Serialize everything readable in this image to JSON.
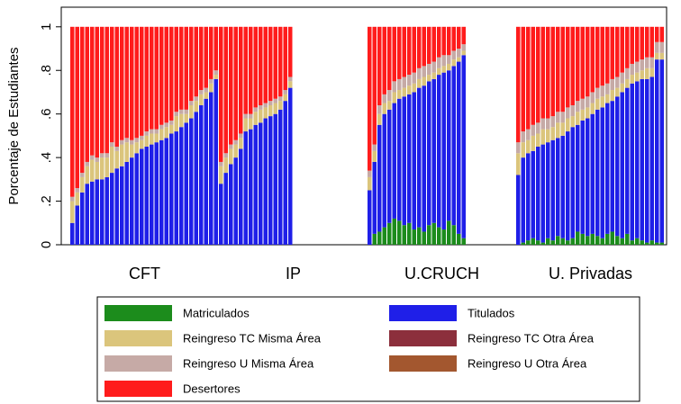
{
  "chart_data": {
    "type": "stacked_bar",
    "ylabel": "Porcentaje de Estudiantes",
    "categories": [
      "CFT",
      "IP",
      "U.CRUCH",
      "U. Privadas"
    ],
    "ylim": [
      0,
      1.09
    ],
    "yticks": [
      0,
      {
        "value": 0.2,
        "label": ".2"
      },
      {
        "value": 0.4,
        "label": ".4"
      },
      {
        "value": 0.6,
        "label": ".6"
      },
      {
        "value": 0.8,
        "label": ".8"
      },
      1
    ],
    "series": [
      {
        "name": "Matriculados",
        "color": "#1c8c1c",
        "values": [
          [
            0,
            0,
            0,
            0,
            0,
            0,
            0,
            0,
            0,
            0,
            0,
            0,
            0,
            0,
            0,
            0,
            0,
            0,
            0,
            0,
            0,
            0,
            0,
            0,
            0,
            0,
            0,
            0,
            0,
            0
          ],
          [
            0,
            0,
            0,
            0,
            0,
            0,
            0,
            0,
            0,
            0,
            0,
            0,
            0,
            0,
            0
          ],
          [
            0,
            0.05,
            0.06,
            0.08,
            0.1,
            0.12,
            0.11,
            0.09,
            0.1,
            0.07,
            0.08,
            0.06,
            0.09,
            0.1,
            0.08,
            0.07,
            0.11,
            0.09,
            0.05,
            0.03
          ],
          [
            0,
            0.01,
            0.02,
            0.03,
            0.02,
            0.01,
            0.03,
            0.02,
            0.04,
            0.03,
            0.02,
            0.03,
            0.06,
            0.05,
            0.04,
            0.05,
            0.04,
            0.03,
            0.05,
            0.06,
            0.04,
            0.03,
            0.05,
            0.02,
            0.03,
            0.02,
            0.01,
            0.02,
            0.01,
            0.01
          ]
        ]
      },
      {
        "name": "Titulados",
        "color": "#1f1fe8",
        "values": [
          [
            0.1,
            0.18,
            0.24,
            0.28,
            0.29,
            0.3,
            0.3,
            0.31,
            0.33,
            0.35,
            0.36,
            0.38,
            0.4,
            0.42,
            0.44,
            0.45,
            0.46,
            0.47,
            0.48,
            0.49,
            0.51,
            0.52,
            0.54,
            0.56,
            0.58,
            0.61,
            0.64,
            0.67,
            0.7,
            0.76
          ],
          [
            0.28,
            0.33,
            0.37,
            0.4,
            0.44,
            0.52,
            0.53,
            0.55,
            0.56,
            0.58,
            0.59,
            0.6,
            0.62,
            0.66,
            0.72
          ],
          [
            0.25,
            0.33,
            0.49,
            0.52,
            0.52,
            0.53,
            0.56,
            0.59,
            0.59,
            0.63,
            0.64,
            0.67,
            0.66,
            0.66,
            0.7,
            0.72,
            0.69,
            0.73,
            0.79,
            0.84
          ],
          [
            0.32,
            0.39,
            0.4,
            0.4,
            0.43,
            0.45,
            0.44,
            0.46,
            0.45,
            0.47,
            0.5,
            0.51,
            0.49,
            0.52,
            0.54,
            0.55,
            0.58,
            0.6,
            0.6,
            0.6,
            0.64,
            0.67,
            0.67,
            0.72,
            0.72,
            0.74,
            0.75,
            0.75,
            0.84,
            0.84
          ]
        ]
      },
      {
        "name": "Reingreso TC Misma Área",
        "color": "#dbc57c",
        "values": [
          [
            0.1,
            0.06,
            0.07,
            0.08,
            0.1,
            0.08,
            0.1,
            0.09,
            0.12,
            0.08,
            0.1,
            0.09,
            0.06,
            0.05,
            0.04,
            0.05,
            0.05,
            0.04,
            0.05,
            0.05,
            0.04,
            0.07,
            0.06,
            0.04,
            0.06,
            0.05,
            0.05,
            0.03,
            0.04,
            0.02
          ],
          [
            0.08,
            0.07,
            0.07,
            0.06,
            0.05,
            0.06,
            0.05,
            0.06,
            0.06,
            0.05,
            0.05,
            0.05,
            0.04,
            0.03,
            0.03
          ],
          [
            0.06,
            0.05,
            0.05,
            0.05,
            0.04,
            0.05,
            0.04,
            0.04,
            0.04,
            0.04,
            0.04,
            0.04,
            0.03,
            0.03,
            0.03,
            0.03,
            0.03,
            0.03,
            0.02,
            0.02
          ],
          [
            0.1,
            0.07,
            0.06,
            0.07,
            0.06,
            0.07,
            0.06,
            0.06,
            0.07,
            0.06,
            0.06,
            0.05,
            0.06,
            0.05,
            0.05,
            0.05,
            0.05,
            0.05,
            0.04,
            0.05,
            0.04,
            0.04,
            0.04,
            0.04,
            0.04,
            0.04,
            0.05,
            0.04,
            0.03,
            0.03
          ]
        ]
      },
      {
        "name": "Reingreso TC Otra Área",
        "color": "#8c2f3c",
        "values": [
          [
            0,
            0,
            0,
            0,
            0,
            0,
            0,
            0,
            0,
            0,
            0,
            0,
            0,
            0,
            0,
            0,
            0,
            0,
            0,
            0,
            0,
            0,
            0,
            0,
            0,
            0,
            0,
            0,
            0,
            0
          ],
          [
            0,
            0,
            0,
            0,
            0,
            0,
            0,
            0,
            0,
            0,
            0,
            0,
            0,
            0,
            0
          ],
          [
            0,
            0,
            0,
            0,
            0,
            0,
            0,
            0,
            0,
            0,
            0,
            0,
            0,
            0,
            0,
            0,
            0,
            0,
            0,
            0
          ],
          [
            0,
            0,
            0,
            0,
            0,
            0,
            0,
            0,
            0,
            0,
            0,
            0,
            0,
            0,
            0,
            0,
            0,
            0,
            0,
            0,
            0,
            0,
            0,
            0,
            0,
            0,
            0,
            0,
            0,
            0
          ]
        ]
      },
      {
        "name": "Reingreso U Misma Área",
        "color": "#c6aaa6",
        "values": [
          [
            0.02,
            0.02,
            0.02,
            0.02,
            0.02,
            0.02,
            0.02,
            0.02,
            0.02,
            0.02,
            0.02,
            0.02,
            0.02,
            0.02,
            0.02,
            0.02,
            0.02,
            0.02,
            0.02,
            0.02,
            0.02,
            0.02,
            0.02,
            0.02,
            0.02,
            0.02,
            0.02,
            0.02,
            0.02,
            0.02
          ],
          [
            0.02,
            0.02,
            0.02,
            0.02,
            0.02,
            0.02,
            0.02,
            0.02,
            0.02,
            0.02,
            0.02,
            0.02,
            0.02,
            0.02,
            0.02
          ],
          [
            0.03,
            0.03,
            0.04,
            0.04,
            0.05,
            0.05,
            0.05,
            0.05,
            0.05,
            0.05,
            0.05,
            0.05,
            0.05,
            0.05,
            0.05,
            0.05,
            0.04,
            0.04,
            0.04,
            0.03
          ],
          [
            0.05,
            0.05,
            0.05,
            0.05,
            0.05,
            0.05,
            0.05,
            0.05,
            0.05,
            0.05,
            0.05,
            0.05,
            0.05,
            0.05,
            0.05,
            0.05,
            0.05,
            0.05,
            0.05,
            0.05,
            0.05,
            0.05,
            0.05,
            0.05,
            0.05,
            0.05,
            0.05,
            0.05,
            0.05,
            0.05
          ]
        ]
      },
      {
        "name": "Reingreso U Otra Área",
        "color": "#a3572f",
        "values": [
          [
            0,
            0,
            0,
            0,
            0,
            0,
            0,
            0,
            0,
            0,
            0,
            0,
            0,
            0,
            0,
            0,
            0,
            0,
            0,
            0,
            0,
            0,
            0,
            0,
            0,
            0,
            0,
            0,
            0,
            0
          ],
          [
            0,
            0,
            0,
            0,
            0,
            0,
            0,
            0,
            0,
            0,
            0,
            0,
            0,
            0,
            0
          ],
          [
            0,
            0,
            0,
            0,
            0,
            0,
            0,
            0,
            0,
            0,
            0,
            0,
            0,
            0,
            0,
            0,
            0,
            0,
            0,
            0
          ],
          [
            0,
            0,
            0,
            0,
            0,
            0,
            0,
            0,
            0,
            0,
            0,
            0,
            0,
            0,
            0,
            0,
            0,
            0,
            0,
            0,
            0,
            0,
            0,
            0,
            0,
            0,
            0,
            0,
            0,
            0
          ]
        ]
      },
      {
        "name": "Desertores",
        "color": "#ff1c1c",
        "values": [
          [
            0.78,
            0.74,
            0.67,
            0.62,
            0.59,
            0.6,
            0.58,
            0.58,
            0.53,
            0.55,
            0.52,
            0.51,
            0.52,
            0.51,
            0.5,
            0.48,
            0.47,
            0.47,
            0.45,
            0.44,
            0.43,
            0.39,
            0.38,
            0.38,
            0.34,
            0.32,
            0.29,
            0.28,
            0.24,
            0.2
          ],
          [
            0.62,
            0.58,
            0.54,
            0.52,
            0.49,
            0.4,
            0.4,
            0.37,
            0.36,
            0.35,
            0.34,
            0.33,
            0.32,
            0.29,
            0.23
          ],
          [
            0.66,
            0.54,
            0.36,
            0.31,
            0.29,
            0.25,
            0.24,
            0.23,
            0.22,
            0.21,
            0.19,
            0.18,
            0.17,
            0.16,
            0.14,
            0.13,
            0.13,
            0.11,
            0.1,
            0.08
          ],
          [
            0.53,
            0.48,
            0.47,
            0.45,
            0.44,
            0.42,
            0.42,
            0.41,
            0.39,
            0.39,
            0.37,
            0.36,
            0.34,
            0.33,
            0.32,
            0.3,
            0.28,
            0.27,
            0.26,
            0.24,
            0.23,
            0.21,
            0.19,
            0.17,
            0.16,
            0.15,
            0.14,
            0.14,
            0.07,
            0.07
          ]
        ]
      }
    ]
  }
}
